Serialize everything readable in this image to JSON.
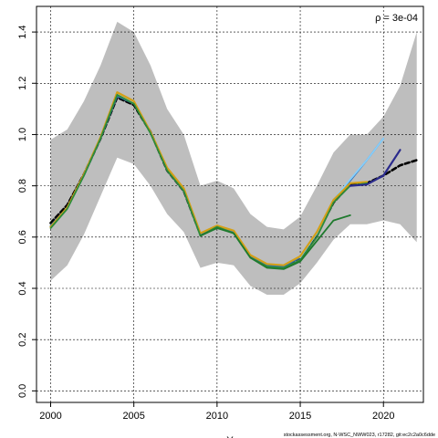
{
  "chart_data": {
    "type": "line",
    "title": "",
    "xlabel": "Y",
    "ylabel": "",
    "xlim": [
      1999.15,
      2022.4
    ],
    "ylim": [
      -0.045,
      1.5
    ],
    "xticks": [
      2000,
      2005,
      2010,
      2015,
      2020
    ],
    "yticks": [
      0.0,
      0.2,
      0.4,
      0.6,
      0.8,
      1.0,
      1.2,
      1.4
    ],
    "grid": true,
    "annotation": "ρ = 3e-04",
    "caption": "stockassessment.org, N-WSC_NWW023, r17282, git:ec2c2a0c6dde",
    "band": {
      "name": "confidence interval",
      "color": "#bebebe",
      "x": [
        2000,
        2001,
        2002,
        2003,
        2004,
        2005,
        2006,
        2007,
        2008,
        2009,
        2010,
        2011,
        2012,
        2013,
        2014,
        2015,
        2016,
        2017,
        2018,
        2019,
        2020,
        2021,
        2022
      ],
      "lower": [
        0.43,
        0.49,
        0.61,
        0.76,
        0.91,
        0.885,
        0.8,
        0.69,
        0.62,
        0.48,
        0.5,
        0.49,
        0.41,
        0.375,
        0.375,
        0.42,
        0.5,
        0.59,
        0.65,
        0.65,
        0.665,
        0.65,
        0.58
      ],
      "upper": [
        0.98,
        1.02,
        1.13,
        1.27,
        1.44,
        1.4,
        1.27,
        1.1,
        1.0,
        0.8,
        0.82,
        0.79,
        0.69,
        0.64,
        0.63,
        0.68,
        0.8,
        0.93,
        1.0,
        1.0,
        1.07,
        1.19,
        1.4
      ]
    },
    "series": [
      {
        "color": "#000000",
        "dashed": true,
        "width": 2.6,
        "x": [
          2000,
          2001,
          2002,
          2003,
          2004,
          2005,
          2006,
          2007,
          2008,
          2009,
          2010,
          2011,
          2012,
          2013,
          2014,
          2015,
          2016,
          2017,
          2018,
          2019,
          2020,
          2021,
          2022
        ],
        "values": [
          0.655,
          0.725,
          0.845,
          0.985,
          1.145,
          1.115,
          1.01,
          0.86,
          0.78,
          0.61,
          0.64,
          0.62,
          0.525,
          0.49,
          0.485,
          0.52,
          0.61,
          0.735,
          0.805,
          0.81,
          0.84,
          0.88,
          0.9
        ]
      },
      {
        "color": "#2b6fb8",
        "width": 1.8,
        "x": [
          2000,
          2001,
          2002,
          2003,
          2004,
          2005,
          2006,
          2007,
          2008,
          2009,
          2010,
          2011,
          2012,
          2013,
          2014,
          2015,
          2016,
          2017,
          2018,
          2019,
          2020
        ],
        "values": [
          0.645,
          0.715,
          0.84,
          0.985,
          1.15,
          1.12,
          1.01,
          0.86,
          0.78,
          0.61,
          0.64,
          0.62,
          0.525,
          0.49,
          0.485,
          0.52,
          0.615,
          0.745,
          0.82,
          0.9,
          0.985
        ]
      },
      {
        "color": "#87cefa",
        "width": 1.8,
        "x": [
          2015,
          2016,
          2017,
          2018,
          2019,
          2020
        ],
        "values": [
          0.52,
          0.615,
          0.745,
          0.825,
          0.9,
          0.985
        ]
      },
      {
        "color": "#d4a017",
        "width": 2.2,
        "x": [
          2000,
          2001,
          2002,
          2003,
          2004,
          2005,
          2006,
          2007,
          2008,
          2009,
          2010,
          2011,
          2012,
          2013,
          2014,
          2015,
          2016,
          2017,
          2018,
          2019
        ],
        "values": [
          0.64,
          0.715,
          0.845,
          0.99,
          1.165,
          1.13,
          1.01,
          0.87,
          0.79,
          0.615,
          0.645,
          0.625,
          0.53,
          0.495,
          0.49,
          0.525,
          0.62,
          0.745,
          0.81,
          0.815
        ]
      },
      {
        "color": "#2e8b3a",
        "width": 1.8,
        "x": [
          2000,
          2001,
          2002,
          2003,
          2004,
          2005,
          2006,
          2007,
          2008,
          2009,
          2010,
          2011,
          2012,
          2013,
          2014,
          2015,
          2016,
          2017,
          2018,
          2019
        ],
        "values": [
          0.635,
          0.71,
          0.84,
          0.985,
          1.155,
          1.12,
          1.005,
          0.86,
          0.78,
          0.605,
          0.64,
          0.615,
          0.52,
          0.485,
          0.48,
          0.51,
          0.6,
          0.735,
          0.8,
          0.81
        ]
      },
      {
        "color": "#1f7a2e",
        "width": 1.8,
        "x": [
          2009,
          2010,
          2011,
          2012,
          2013,
          2014,
          2015,
          2016,
          2017,
          2018
        ],
        "values": [
          0.605,
          0.635,
          0.615,
          0.52,
          0.48,
          0.475,
          0.505,
          0.585,
          0.665,
          0.685
        ]
      },
      {
        "color": "#2a2a8c",
        "width": 2.2,
        "x": [
          2018,
          2019,
          2020,
          2021
        ],
        "values": [
          0.8,
          0.805,
          0.84,
          0.94
        ]
      }
    ]
  }
}
